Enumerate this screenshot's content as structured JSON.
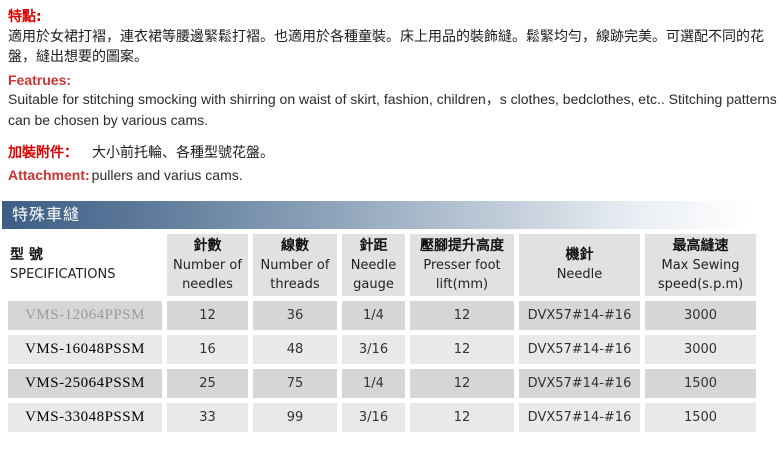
{
  "content": {
    "features_zh_label": "特點:",
    "features_zh_text": "適用於女裙打褶，連衣裙等腰邊緊鬆打褶。也適用於各種童裝。床上用品的裝飾縫。鬆緊均勻，線跡完美。可選配不同的花盤，縫出想要的圖案。",
    "features_en_label": "Featrues:",
    "features_en_text": "Suitable for stitching smocking with shirring on waist of skirt, fashion, children，s clothes, bedclothes, etc..  Stitching patterns can be chosen by various cams.",
    "attachment_zh_label": "加裝附件：",
    "attachment_zh_text": "大小前托輪、各種型號花盤。",
    "attachment_en_label": "Attachment:",
    "attachment_en_text": "pullers and varius cams.",
    "section_title": "特殊車縫"
  },
  "table": {
    "columns": [
      {
        "zh": "型 號",
        "en": "SPECIFICATIONS"
      },
      {
        "zh": "針數",
        "en": "Number of needles"
      },
      {
        "zh": "線數",
        "en": "Number of threads"
      },
      {
        "zh": "針距",
        "en": "Needle gauge"
      },
      {
        "zh": "壓腳提升高度",
        "en": "Presser foot lift(mm)"
      },
      {
        "zh": "機針",
        "en": "Needle"
      },
      {
        "zh": "最高縫速",
        "en": "Max Sewing speed(s.p.m)"
      }
    ],
    "rows": [
      {
        "model": "VMS-12064PPSM",
        "needles": "12",
        "threads": "36",
        "gauge": "1/4",
        "lift": "12",
        "needle": "DVX57#14-#16",
        "speed": "3000"
      },
      {
        "model": "VMS-16048PSSM",
        "needles": "16",
        "threads": "48",
        "gauge": "3/16",
        "lift": "12",
        "needle": "DVX57#14-#16",
        "speed": "3000"
      },
      {
        "model": "VMS-25064PSSM",
        "needles": "25",
        "threads": "75",
        "gauge": "1/4",
        "lift": "12",
        "needle": "DVX57#14-#16",
        "speed": "1500"
      },
      {
        "model": "VMS-33048PSSM",
        "needles": "33",
        "threads": "99",
        "gauge": "3/16",
        "lift": "12",
        "needle": "DVX57#14-#16",
        "speed": "1500"
      }
    ]
  },
  "colors": {
    "heading_red_zh": "#dd0000",
    "heading_red_en": "#cc3333",
    "section_bar_left": "#3c5d84",
    "section_bar_right": "#ffffff",
    "header_cell_bg": "#e1e1e1",
    "row_odd_bg": "#d6d6d6",
    "row_even_bg": "#e9e9e9",
    "muted_model_text": "#9a9a9a"
  }
}
